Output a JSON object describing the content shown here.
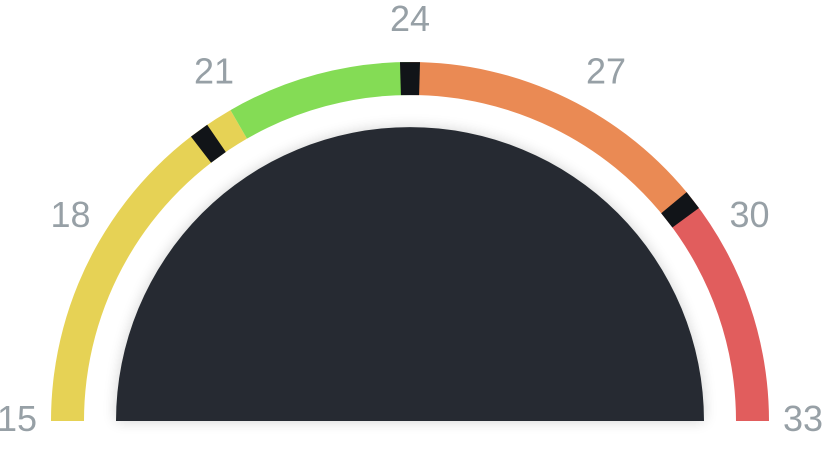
{
  "chart_data": {
    "type": "gauge",
    "title": "",
    "range": [
      15,
      33
    ],
    "tick_labels": [
      "15",
      "18",
      "21",
      "24",
      "27",
      "30",
      "33"
    ],
    "segments": [
      {
        "name": "yellow",
        "from": 15,
        "to": 21,
        "color": "#e6d255"
      },
      {
        "name": "green",
        "from": 21,
        "to": 24,
        "color": "#84dc55"
      },
      {
        "name": "orange",
        "from": 24,
        "to": 29.2,
        "color": "#ea8a54"
      },
      {
        "name": "red",
        "from": 29.2,
        "to": 33,
        "color": "#e15d5d"
      }
    ],
    "markers": [
      20.4,
      24,
      29.2
    ],
    "marker_color": "#111418",
    "dial_color": "#252b30",
    "label_color": "#97a0a6"
  }
}
